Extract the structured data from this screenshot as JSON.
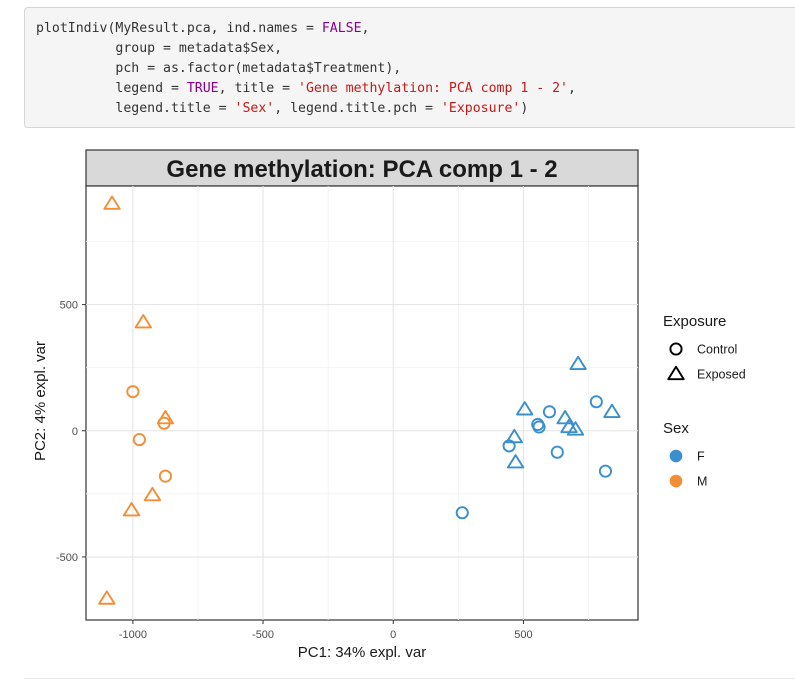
{
  "code": {
    "lines": [
      [
        {
          "t": "plotIndiv(MyResult.pca, ind.names = "
        },
        {
          "t": "FALSE",
          "c": "kw"
        },
        {
          "t": ","
        }
      ],
      [
        {
          "t": "          group = metadata$Sex,"
        }
      ],
      [
        {
          "t": "          pch = as.factor(metadata$Treatment),"
        }
      ],
      [
        {
          "t": "          legend = "
        },
        {
          "t": "TRUE",
          "c": "kw"
        },
        {
          "t": ", title = "
        },
        {
          "t": "'Gene methylation: PCA comp 1 - 2'",
          "c": "str"
        },
        {
          "t": ","
        }
      ],
      [
        {
          "t": "          legend.title = "
        },
        {
          "t": "'Sex'",
          "c": "str"
        },
        {
          "t": ", legend.title.pch = "
        },
        {
          "t": "'Exposure'",
          "c": "str"
        },
        {
          "t": ")"
        }
      ]
    ]
  },
  "chart_data": {
    "type": "scatter",
    "title": "Gene methylation: PCA comp 1 - 2",
    "xlabel": "PC1: 34% expl. var",
    "ylabel": "PC2: 4% expl. var",
    "xlim": [
      -1180,
      940
    ],
    "ylim": [
      -750,
      970
    ],
    "xticks": [
      -1000,
      -500,
      0,
      500
    ],
    "yticks": [
      -500,
      0,
      500
    ],
    "xtick_labels": [
      "-1000",
      "-500",
      "0",
      "500"
    ],
    "ytick_labels": [
      "-500",
      "0",
      "500"
    ],
    "grid": true,
    "legend_position": "right",
    "legend": {
      "shape_title": "Exposure",
      "shape_items": [
        {
          "label": "Control",
          "shape": "circle"
        },
        {
          "label": "Exposed",
          "shape": "triangle"
        }
      ],
      "color_title": "Sex",
      "color_items": [
        {
          "label": "F",
          "color": "#3a8fcc"
        },
        {
          "label": "M",
          "color": "#f28e35"
        }
      ]
    },
    "colors": {
      "F": "#3a8fcc",
      "M": "#f28e35"
    },
    "points": [
      {
        "x": -1080,
        "y": 900,
        "sex": "M",
        "exposure": "Exposed"
      },
      {
        "x": -960,
        "y": 430,
        "sex": "M",
        "exposure": "Exposed"
      },
      {
        "x": -1000,
        "y": 155,
        "sex": "M",
        "exposure": "Control"
      },
      {
        "x": -975,
        "y": -35,
        "sex": "M",
        "exposure": "Control"
      },
      {
        "x": -875,
        "y": 50,
        "sex": "M",
        "exposure": "Exposed"
      },
      {
        "x": -880,
        "y": 30,
        "sex": "M",
        "exposure": "Control"
      },
      {
        "x": -875,
        "y": -180,
        "sex": "M",
        "exposure": "Control"
      },
      {
        "x": -925,
        "y": -255,
        "sex": "M",
        "exposure": "Exposed"
      },
      {
        "x": -1005,
        "y": -315,
        "sex": "M",
        "exposure": "Exposed"
      },
      {
        "x": -1100,
        "y": -665,
        "sex": "M",
        "exposure": "Exposed"
      },
      {
        "x": 710,
        "y": 265,
        "sex": "F",
        "exposure": "Exposed"
      },
      {
        "x": 780,
        "y": 115,
        "sex": "F",
        "exposure": "Control"
      },
      {
        "x": 840,
        "y": 75,
        "sex": "F",
        "exposure": "Exposed"
      },
      {
        "x": 600,
        "y": 75,
        "sex": "F",
        "exposure": "Control"
      },
      {
        "x": 505,
        "y": 85,
        "sex": "F",
        "exposure": "Exposed"
      },
      {
        "x": 660,
        "y": 50,
        "sex": "F",
        "exposure": "Exposed"
      },
      {
        "x": 555,
        "y": 25,
        "sex": "F",
        "exposure": "Control"
      },
      {
        "x": 560,
        "y": 15,
        "sex": "F",
        "exposure": "Control"
      },
      {
        "x": 675,
        "y": 15,
        "sex": "F",
        "exposure": "Exposed"
      },
      {
        "x": 700,
        "y": 5,
        "sex": "F",
        "exposure": "Exposed"
      },
      {
        "x": 465,
        "y": -25,
        "sex": "F",
        "exposure": "Exposed"
      },
      {
        "x": 445,
        "y": -60,
        "sex": "F",
        "exposure": "Control"
      },
      {
        "x": 630,
        "y": -85,
        "sex": "F",
        "exposure": "Control"
      },
      {
        "x": 470,
        "y": -125,
        "sex": "F",
        "exposure": "Exposed"
      },
      {
        "x": 815,
        "y": -160,
        "sex": "F",
        "exposure": "Control"
      },
      {
        "x": 265,
        "y": -325,
        "sex": "F",
        "exposure": "Control"
      }
    ]
  }
}
